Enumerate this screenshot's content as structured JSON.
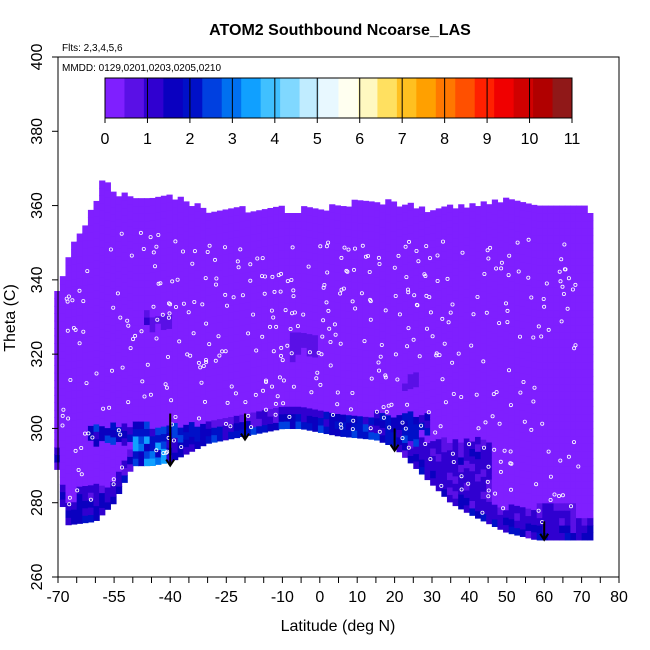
{
  "chart_data": {
    "type": "heatmap",
    "title": "ATOM2 Southbound Ncoarse_LAS",
    "flights_label": "Flts: 2,3,4,5,6",
    "dates_label": "MMDD: 0129,0201,0203,0205,0210",
    "xlabel": "Latitude (deg N)",
    "ylabel": "Theta (C)",
    "xlim": [
      -70,
      80
    ],
    "ylim": [
      260,
      400
    ],
    "x_ticks_minor": [
      -70,
      -65,
      -60,
      -55,
      -50,
      -45,
      -40,
      -35,
      -30,
      -25,
      -20,
      -15,
      -10,
      -5,
      0,
      5,
      10,
      15,
      20,
      25,
      30,
      35,
      40,
      45,
      50,
      55,
      60,
      65,
      70,
      75,
      80
    ],
    "x_tick_labels": [
      "-70",
      "-55",
      "-40",
      "-25",
      "-10",
      "0",
      "10",
      "20",
      "30",
      "40",
      "50",
      "60",
      "70",
      "80"
    ],
    "y_tick_labels": [
      "260",
      "280",
      "300",
      "320",
      "340",
      "360",
      "380",
      "400"
    ],
    "colorbar": {
      "min": 0,
      "max": 11,
      "tick_labels": [
        "0",
        "1",
        "2",
        "3",
        "4",
        "5",
        "6",
        "7",
        "8",
        "9",
        "10",
        "11"
      ],
      "colors": [
        "#7f1fff",
        "#5a10e6",
        "#3000d0",
        "#0a00c0",
        "#0010c8",
        "#0040e0",
        "#0070f0",
        "#10a0ff",
        "#40c0ff",
        "#80d8ff",
        "#c0ecff",
        "#e8f8ff",
        "#fffff0",
        "#fff8c0",
        "#ffe060",
        "#ffc020",
        "#ffa000",
        "#ff7800",
        "#ff5000",
        "#ff2000",
        "#f00000",
        "#d00000",
        "#b00000",
        "#901818"
      ]
    },
    "coverage_top": [
      [
        -71,
        334
      ],
      [
        -67,
        346
      ],
      [
        -60,
        360
      ],
      [
        -58,
        367
      ],
      [
        -55,
        362
      ],
      [
        -40,
        362
      ],
      [
        -30,
        358
      ],
      [
        -20,
        358
      ],
      [
        -10,
        358
      ],
      [
        0,
        358
      ],
      [
        10,
        360
      ],
      [
        20,
        360
      ],
      [
        30,
        358
      ],
      [
        40,
        359
      ],
      [
        54,
        361
      ],
      [
        58,
        359
      ],
      [
        68,
        359
      ],
      [
        71,
        358
      ]
    ],
    "coverage_bottom": [
      [
        -71,
        294
      ],
      [
        -68,
        274
      ],
      [
        -60,
        275
      ],
      [
        -55,
        280
      ],
      [
        -50,
        290
      ],
      [
        -45,
        290
      ],
      [
        -40,
        291
      ],
      [
        -30,
        296
      ],
      [
        -20,
        298
      ],
      [
        -10,
        300
      ],
      [
        -5,
        300
      ],
      [
        5,
        298
      ],
      [
        15,
        297
      ],
      [
        20,
        295
      ],
      [
        25,
        290
      ],
      [
        30,
        285
      ],
      [
        35,
        280
      ],
      [
        40,
        277
      ],
      [
        50,
        272
      ],
      [
        58,
        270
      ],
      [
        72,
        270
      ]
    ],
    "bottom_mode_value": 0,
    "enhanced_regions": [
      {
        "lat_range": [
          -62,
          25
        ],
        "theta_range": [
          295,
          300
        ],
        "value": 1.8
      },
      {
        "lat_range": [
          -66,
          -50
        ],
        "theta_range": [
          274,
          284
        ],
        "value": 1.2
      },
      {
        "lat_range": [
          -50,
          -42
        ],
        "theta_range": [
          288,
          296
        ],
        "value": 2.6
      },
      {
        "lat_range": [
          -10,
          28
        ],
        "theta_range": [
          298,
          303
        ],
        "value": 1.5
      },
      {
        "lat_range": [
          20,
          45
        ],
        "theta_range": [
          278,
          296
        ],
        "value": 1.0
      },
      {
        "lat_range": [
          45,
          68
        ],
        "theta_range": [
          271,
          278
        ],
        "value": 0.9
      },
      {
        "lat_range": [
          -48,
          -40
        ],
        "theta_range": [
          326,
          330
        ],
        "value": 0.7
      },
      {
        "lat_range": [
          -8,
          -2
        ],
        "theta_range": [
          318,
          324
        ],
        "value": 0.6
      },
      {
        "lat_range": [
          22,
          26
        ],
        "theta_range": [
          310,
          314
        ],
        "value": 0.7
      }
    ],
    "arrows_lat": [
      -40,
      -20,
      20,
      60
    ],
    "arrows_theta": [
      [
        304,
        290
      ],
      [
        304,
        297
      ],
      [
        300,
        294
      ],
      [
        275,
        270
      ]
    ]
  }
}
